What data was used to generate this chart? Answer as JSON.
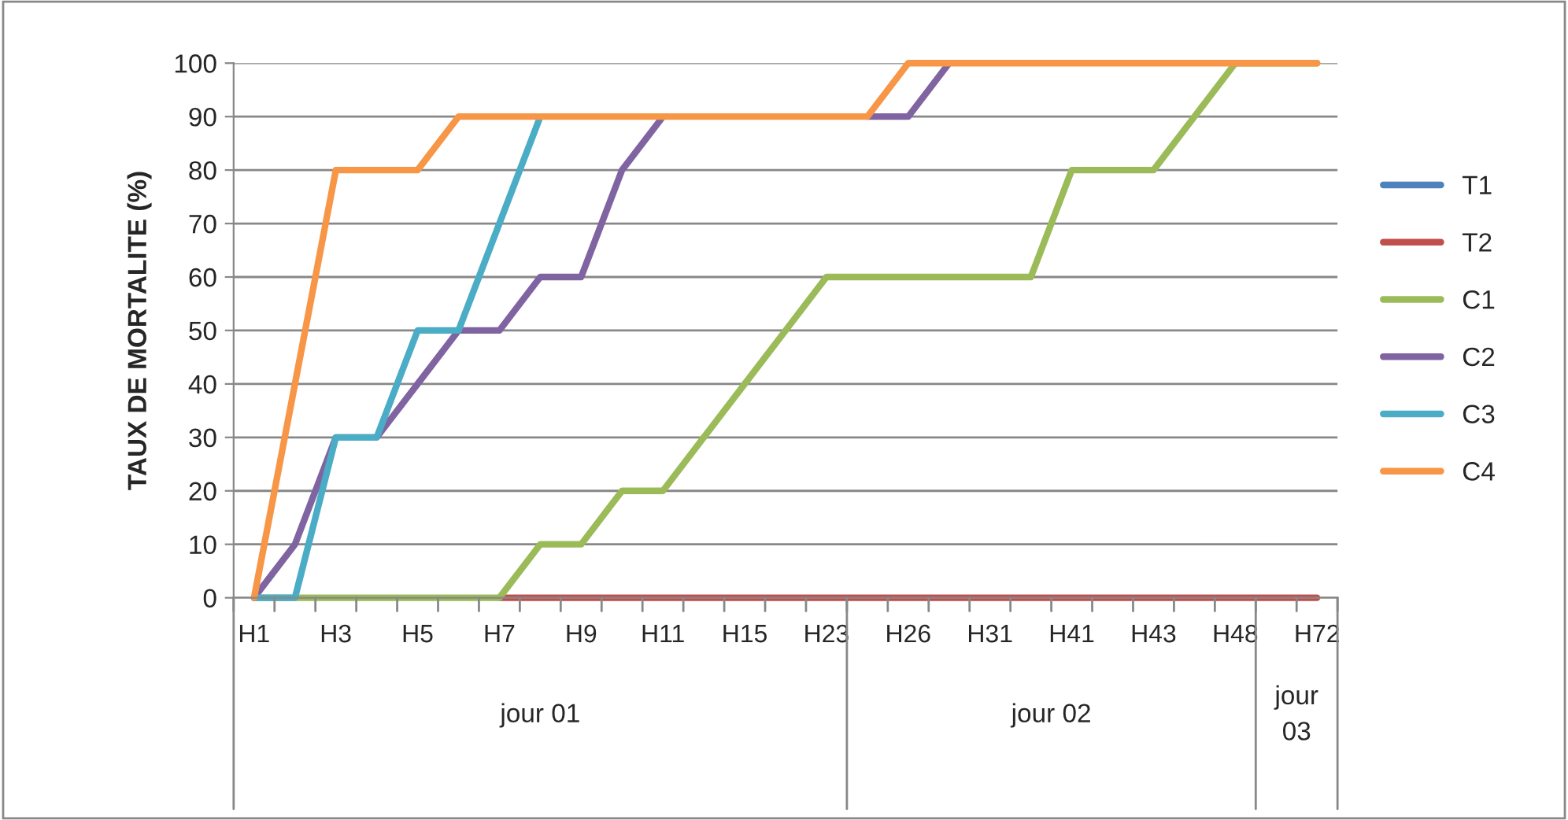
{
  "chart_data": {
    "type": "line",
    "ylabel": "TAUX DE MORTALITE (%)",
    "categories": [
      "H1",
      null,
      "H3",
      null,
      "H5",
      null,
      "H7",
      null,
      "H9",
      null,
      "H11",
      null,
      "H15",
      null,
      "H23",
      null,
      "H26",
      null,
      "H31",
      null,
      "H41",
      null,
      "H43",
      null,
      "H48",
      null,
      "H72"
    ],
    "series": [
      {
        "name": "T1",
        "color": "#4f81bd",
        "values": [
          null,
          null,
          null,
          null,
          null,
          null,
          null,
          null,
          null,
          null,
          null,
          null,
          null,
          null,
          null,
          null,
          null,
          null,
          null,
          null,
          null,
          null,
          null,
          null,
          null,
          null,
          null
        ]
      },
      {
        "name": "T2",
        "color": "#c0504d",
        "values": [
          null,
          null,
          null,
          null,
          null,
          null,
          0,
          0,
          0,
          0,
          0,
          0,
          0,
          0,
          0,
          0,
          0,
          0,
          0,
          0,
          0,
          0,
          0,
          0,
          0,
          0,
          0
        ]
      },
      {
        "name": "C1",
        "color": "#9bbb59",
        "values": [
          0,
          0,
          0,
          0,
          0,
          0,
          0,
          10,
          10,
          20,
          20,
          30,
          40,
          50,
          60,
          60,
          60,
          60,
          60,
          60,
          80,
          80,
          80,
          90,
          100,
          100,
          100
        ]
      },
      {
        "name": "C2",
        "color": "#8064a2",
        "values": [
          0,
          10,
          30,
          30,
          40,
          50,
          50,
          60,
          60,
          80,
          90,
          null,
          null,
          null,
          null,
          90,
          90,
          100,
          null,
          null,
          null,
          null,
          null,
          null,
          null,
          null,
          null
        ]
      },
      {
        "name": "C3",
        "color": "#4bacc6",
        "values": [
          0,
          0,
          30,
          30,
          50,
          50,
          70,
          90,
          null,
          null,
          null,
          null,
          null,
          null,
          null,
          null,
          null,
          null,
          null,
          null,
          null,
          null,
          null,
          null,
          null,
          null,
          null
        ]
      },
      {
        "name": "C4",
        "color": "#f79646",
        "values": [
          0,
          40,
          80,
          80,
          80,
          90,
          90,
          90,
          90,
          90,
          90,
          90,
          90,
          90,
          90,
          90,
          100,
          100,
          100,
          100,
          100,
          100,
          100,
          100,
          100,
          100,
          100
        ]
      }
    ],
    "annotations": [
      "jour 01",
      "jour 02",
      "jour 03"
    ],
    "ylim": [
      0,
      100
    ],
    "yticks": [
      0,
      10,
      20,
      30,
      40,
      50,
      60,
      70,
      80,
      90,
      100
    ],
    "grid": "y",
    "legend": "right",
    "line_style": "solid",
    "marker": "none"
  }
}
